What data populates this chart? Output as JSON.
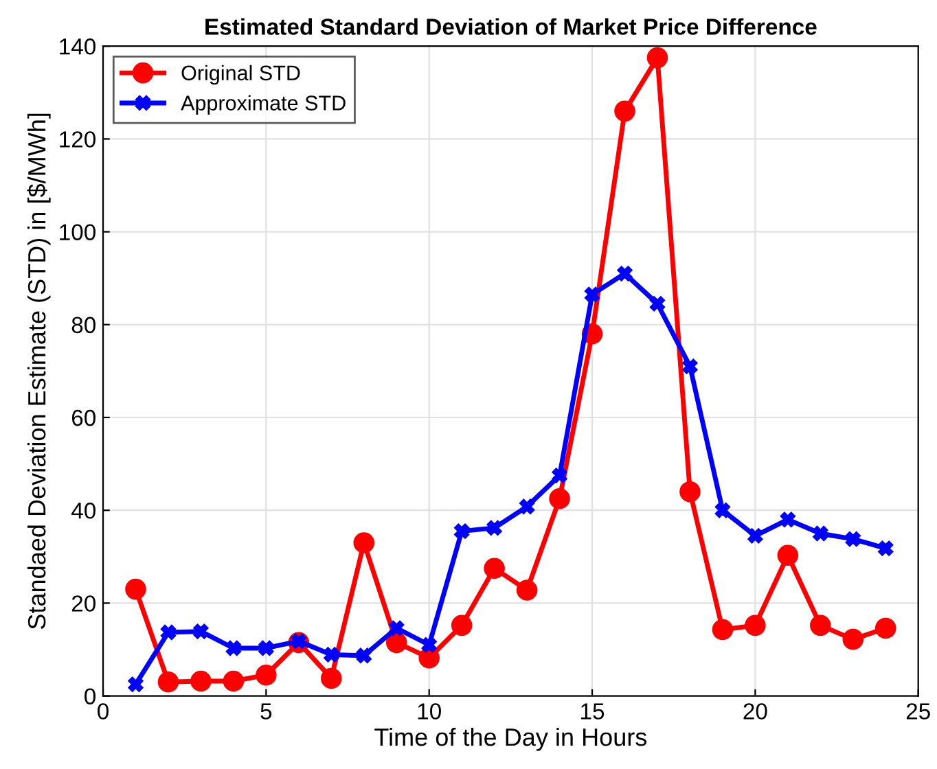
{
  "chart_data": {
    "type": "line",
    "title": "Estimated Standard Deviation of Market Price Difference",
    "xlabel": "Time of the Day in Hours",
    "ylabel": "Standaed Deviation Estimate (STD) in [$/MWh]",
    "x": [
      1,
      2,
      3,
      4,
      5,
      6,
      7,
      8,
      9,
      10,
      11,
      12,
      13,
      14,
      15,
      16,
      17,
      18,
      19,
      20,
      21,
      22,
      23,
      24
    ],
    "series": [
      {
        "name": "Original STD",
        "color": "#ff0000",
        "marker": "circle",
        "values": [
          23,
          3,
          3.2,
          3.2,
          4.5,
          11.5,
          3.8,
          33,
          11.5,
          8.2,
          15.2,
          27.5,
          22.8,
          42.5,
          78,
          126,
          137.5,
          44,
          14.3,
          15.2,
          30.3,
          15.2,
          12.2,
          14.6
        ]
      },
      {
        "name": "Approximate STD",
        "color": "#0000ff",
        "marker": "cross",
        "values": [
          2.5,
          13.7,
          13.9,
          10.3,
          10.3,
          11.8,
          8.9,
          8.7,
          14.6,
          11,
          35.5,
          36.2,
          40.8,
          47.5,
          86.5,
          91,
          84.5,
          71,
          40,
          34.5,
          38,
          35,
          33.8,
          31.8
        ]
      }
    ],
    "xlim": [
      0,
      25
    ],
    "xticks": [
      0,
      5,
      10,
      15,
      20,
      25
    ],
    "ylim": [
      0,
      140
    ],
    "yticks": [
      0,
      20,
      40,
      60,
      80,
      100,
      120,
      140
    ],
    "grid": true,
    "legend": "top left",
    "line_style": "solid"
  }
}
